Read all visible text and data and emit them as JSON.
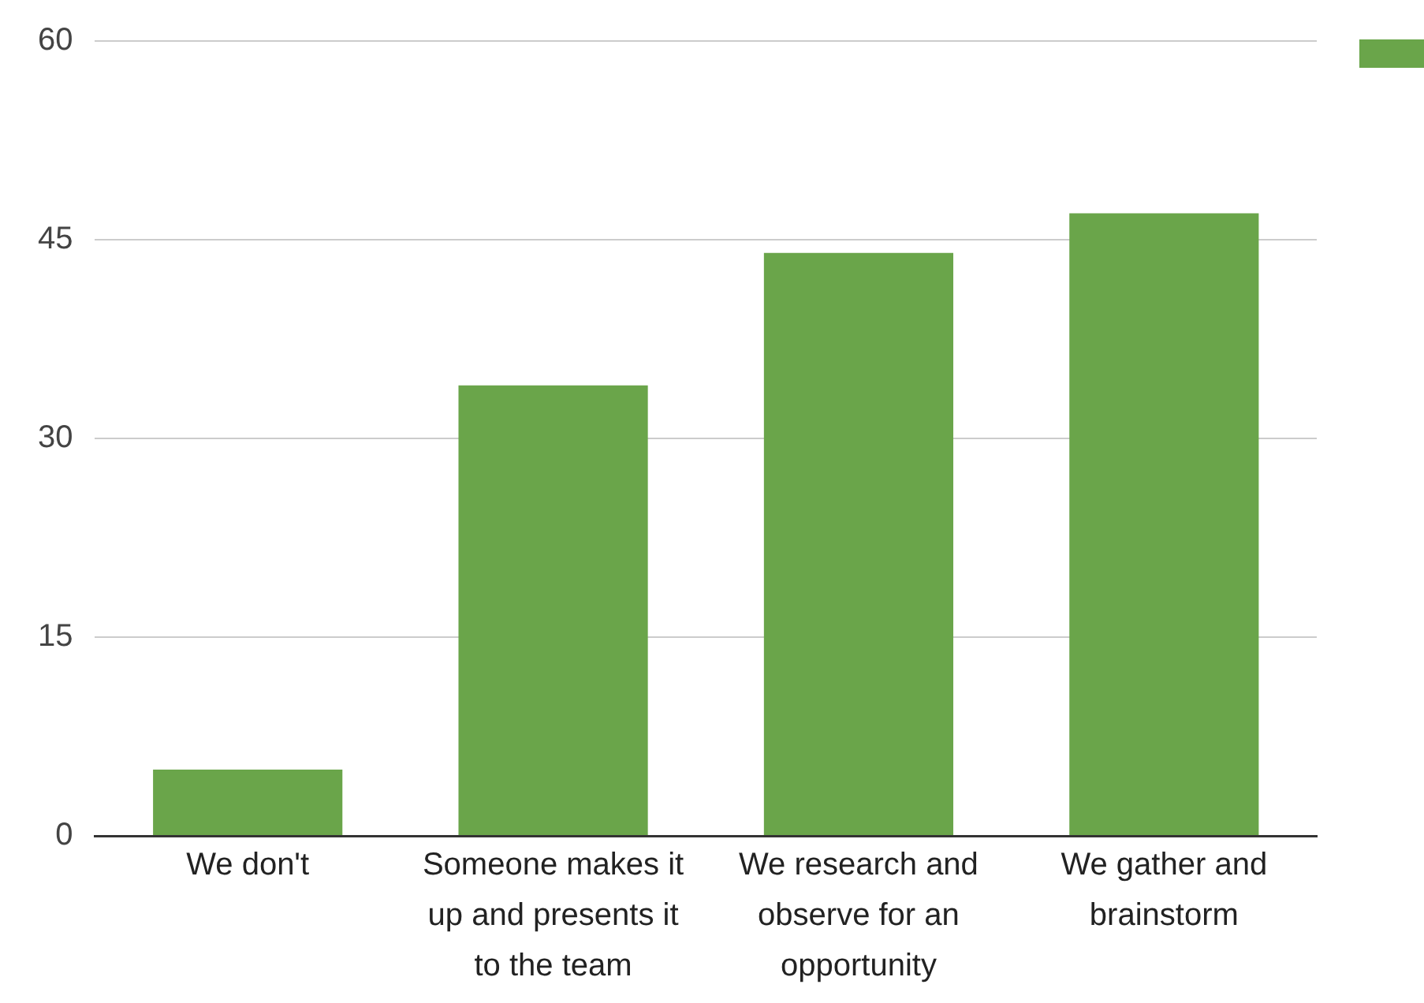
{
  "chart_data": {
    "type": "bar",
    "categories": [
      "We don't",
      "Someone makes it up and presents it to the team",
      "We research and observe for an opportunity",
      "We gather and brainstorm"
    ],
    "series": [
      {
        "color": "#6aa54a",
        "values": [
          5,
          34,
          44,
          47
        ]
      }
    ],
    "ylim": [
      0,
      60
    ],
    "yticks": [
      0,
      15,
      30,
      45,
      60
    ],
    "grid": "y"
  }
}
